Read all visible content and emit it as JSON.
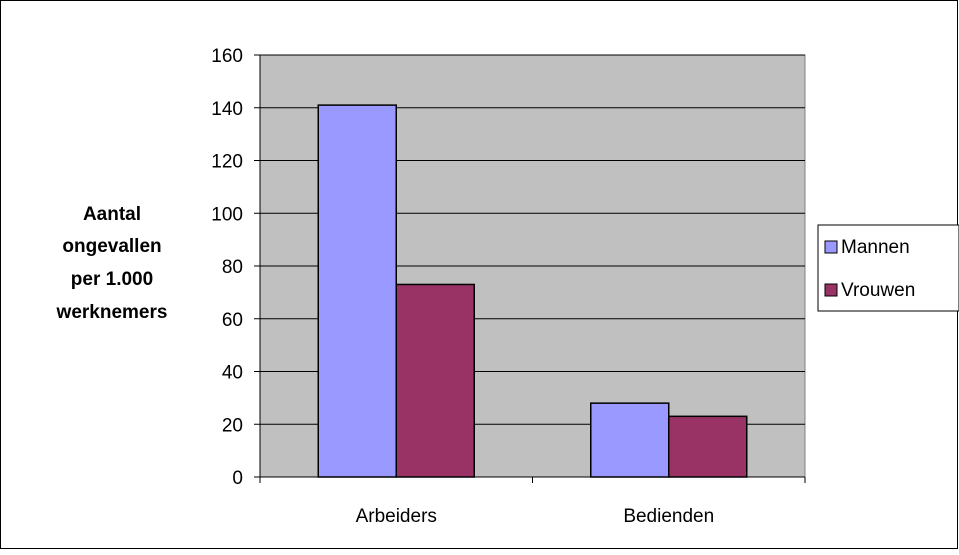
{
  "chart_data": {
    "type": "bar",
    "title": "",
    "xlabel": "",
    "ylabel_lines": [
      "Aantal",
      "ongevallen",
      "per 1.000",
      "werknemers"
    ],
    "categories": [
      "Arbeiders",
      "Bedienden"
    ],
    "series": [
      {
        "name": "Mannen",
        "values": [
          141,
          28
        ],
        "color": "#9999FF"
      },
      {
        "name": "Vrouwen",
        "values": [
          73,
          23
        ],
        "color": "#993366"
      }
    ],
    "ylim": [
      0,
      160
    ],
    "yticks": [
      0,
      20,
      40,
      60,
      80,
      100,
      120,
      140,
      160
    ],
    "grid": true,
    "legend_position": "right",
    "plot_background": "#C0C0C0"
  }
}
